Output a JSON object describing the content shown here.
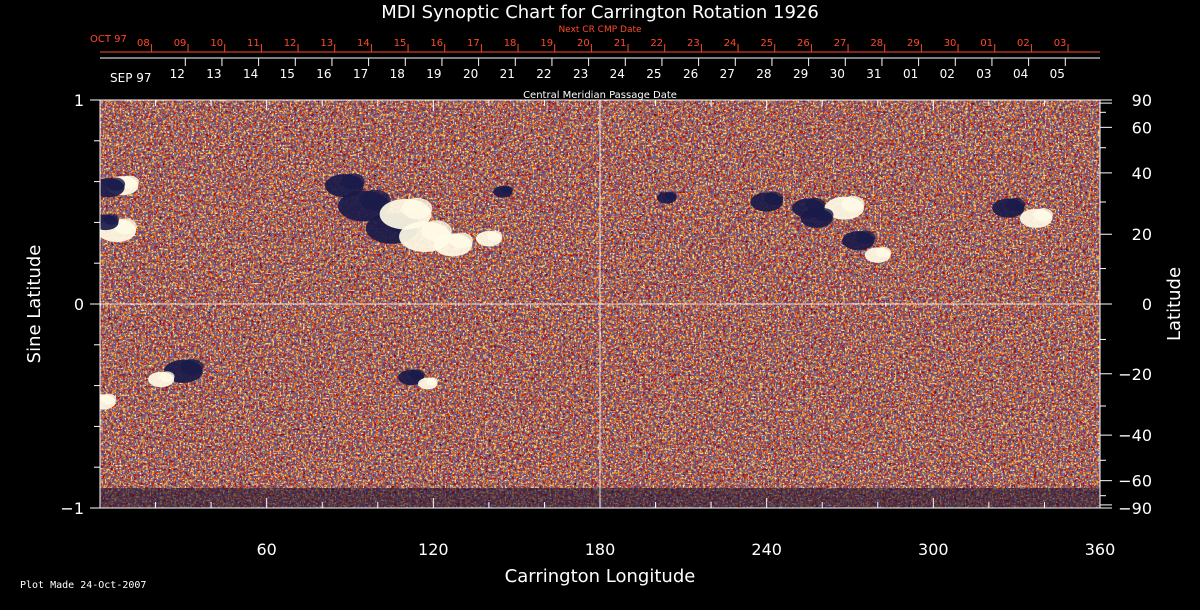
{
  "colors": {
    "background": "#000000",
    "axis": "#ffffff",
    "next_cmp_text": "#ff4a2a",
    "map_base": "#e85a14",
    "map_mid": "#ff8a20",
    "map_bright": "#ffd35a",
    "positive_polarity": "#fffbe6",
    "negative_polarity": "#191a4a"
  },
  "footer": {
    "plot_made": "Plot Made 24-Oct-2007"
  },
  "chart_data": {
    "type": "heatmap",
    "title": "MDI Synoptic Chart for Carrington Rotation 1926",
    "xlabel": "Carrington Longitude",
    "ylabel_left": "Sine Latitude",
    "ylabel_right": "Latitude",
    "top_axis_label": "Central Meridian Passage Date",
    "next_cmp_label": "Next CR CMP Date",
    "xlim": [
      0,
      360
    ],
    "ylim": [
      -1,
      1
    ],
    "x_ticks": [
      60,
      120,
      180,
      240,
      300,
      360
    ],
    "x_tick_labels": [
      "60",
      "120",
      "180",
      "240",
      "300",
      "360"
    ],
    "y_ticks_left": [
      1,
      0,
      -1
    ],
    "y_tick_labels_left": [
      "1",
      "0",
      "−1"
    ],
    "y_ticks_right_deg": [
      90,
      60,
      40,
      20,
      0,
      -20,
      -40,
      -60,
      -90
    ],
    "y_tick_labels_right": [
      "90",
      "60",
      "40",
      "20",
      "0",
      "−20",
      "−40",
      "−60",
      "−90"
    ],
    "guide_lines": {
      "vertical_longitude": 180,
      "horizontal_sine_latitude": 0
    },
    "cmp_dates": {
      "start_month_label": "SEP 97",
      "labels": [
        "05",
        "04",
        "03",
        "02",
        "01",
        "31",
        "30",
        "29",
        "28",
        "27",
        "26",
        "25",
        "24",
        "23",
        "22",
        "21",
        "20",
        "19",
        "18",
        "17",
        "16",
        "15",
        "14",
        "13",
        "12"
      ],
      "first_label_longitude": 347.5,
      "degrees_per_day": 13.2,
      "label_side": "right"
    },
    "next_cmp_dates": {
      "start_month_label": "OCT 97",
      "labels": [
        "03",
        "02",
        "01",
        "30",
        "29",
        "28",
        "27",
        "26",
        "25",
        "24",
        "23",
        "22",
        "21",
        "20",
        "19",
        "18",
        "17",
        "16",
        "15",
        "14",
        "13",
        "12",
        "11",
        "10",
        "09",
        "08"
      ],
      "first_label_longitude": 348.5,
      "degrees_per_day": 13.2,
      "label_side": "left"
    },
    "magnetic_regions": [
      {
        "polarity": "negative",
        "lon": 88,
        "sinlat": 0.58,
        "size": 6
      },
      {
        "polarity": "negative",
        "lon": 95,
        "sinlat": 0.48,
        "size": 8
      },
      {
        "polarity": "negative",
        "lon": 105,
        "sinlat": 0.37,
        "size": 8
      },
      {
        "polarity": "positive",
        "lon": 110,
        "sinlat": 0.44,
        "size": 8
      },
      {
        "polarity": "positive",
        "lon": 117,
        "sinlat": 0.33,
        "size": 8
      },
      {
        "polarity": "positive",
        "lon": 127,
        "sinlat": 0.29,
        "size": 6
      },
      {
        "polarity": "positive",
        "lon": 140,
        "sinlat": 0.32,
        "size": 4
      },
      {
        "polarity": "positive",
        "lon": 8,
        "sinlat": 0.58,
        "size": 5
      },
      {
        "polarity": "negative",
        "lon": 3,
        "sinlat": 0.57,
        "size": 5
      },
      {
        "polarity": "positive",
        "lon": 6,
        "sinlat": 0.36,
        "size": 6
      },
      {
        "polarity": "negative",
        "lon": 2,
        "sinlat": 0.4,
        "size": 4
      },
      {
        "polarity": "negative",
        "lon": 30,
        "sinlat": -0.33,
        "size": 6
      },
      {
        "polarity": "positive",
        "lon": 22,
        "sinlat": -0.37,
        "size": 4
      },
      {
        "polarity": "negative",
        "lon": 112,
        "sinlat": -0.36,
        "size": 4
      },
      {
        "polarity": "positive",
        "lon": 118,
        "sinlat": -0.39,
        "size": 3
      },
      {
        "polarity": "positive",
        "lon": 1,
        "sinlat": -0.48,
        "size": 4
      },
      {
        "polarity": "negative",
        "lon": 240,
        "sinlat": 0.5,
        "size": 5
      },
      {
        "polarity": "negative",
        "lon": 255,
        "sinlat": 0.47,
        "size": 5
      },
      {
        "polarity": "positive",
        "lon": 268,
        "sinlat": 0.47,
        "size": 6
      },
      {
        "polarity": "negative",
        "lon": 273,
        "sinlat": 0.31,
        "size": 5
      },
      {
        "polarity": "positive",
        "lon": 280,
        "sinlat": 0.24,
        "size": 4
      },
      {
        "polarity": "negative",
        "lon": 258,
        "sinlat": 0.42,
        "size": 5
      },
      {
        "polarity": "negative",
        "lon": 327,
        "sinlat": 0.47,
        "size": 5
      },
      {
        "polarity": "positive",
        "lon": 337,
        "sinlat": 0.42,
        "size": 5
      },
      {
        "polarity": "negative",
        "lon": 145,
        "sinlat": 0.55,
        "size": 3
      },
      {
        "polarity": "negative",
        "lon": 204,
        "sinlat": 0.52,
        "size": 3
      }
    ]
  }
}
